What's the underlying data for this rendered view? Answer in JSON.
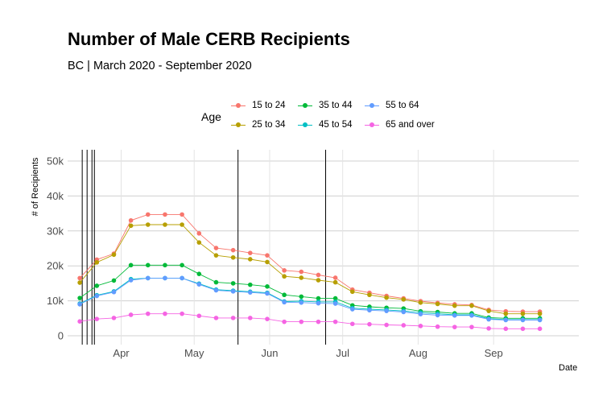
{
  "chart_data": {
    "type": "line",
    "title": "Number of Male CERB Recipients",
    "subtitle": "BC | March 2020 - September 2020",
    "xlabel": "Date",
    "ylabel": "# of Recipients",
    "ylim": [
      0,
      50000
    ],
    "yticks": [
      0,
      10000,
      20000,
      30000,
      40000,
      50000
    ],
    "ytick_labels": [
      "0",
      "10k",
      "20k",
      "30k",
      "40k",
      "50k"
    ],
    "xticks": [
      "2020-04-01",
      "2020-05-01",
      "2020-06-01",
      "2020-07-01",
      "2020-08-01",
      "2020-09-01"
    ],
    "xtick_labels": [
      "Apr",
      "May",
      "Jun",
      "Jul",
      "Aug",
      "Sep"
    ],
    "xlim": [
      "2020-03-10",
      "2020-10-06"
    ],
    "grid": true,
    "legend_title": "Age",
    "legend_position": "top",
    "vlines": [
      "2020-03-16",
      "2020-03-18",
      "2020-03-20",
      "2020-03-21",
      "2020-05-19",
      "2020-06-24"
    ],
    "x": [
      "2020-03-15",
      "2020-03-22",
      "2020-03-29",
      "2020-04-05",
      "2020-04-12",
      "2020-04-19",
      "2020-04-26",
      "2020-05-03",
      "2020-05-10",
      "2020-05-17",
      "2020-05-24",
      "2020-05-31",
      "2020-06-07",
      "2020-06-14",
      "2020-06-21",
      "2020-06-28",
      "2020-07-05",
      "2020-07-12",
      "2020-07-19",
      "2020-07-26",
      "2020-08-02",
      "2020-08-09",
      "2020-08-16",
      "2020-08-23",
      "2020-08-30",
      "2020-09-06",
      "2020-09-13",
      "2020-09-20",
      "2020-09-27"
    ],
    "series": [
      {
        "name": "15 to 24",
        "color": "#F8766D",
        "values": [
          16500,
          21800,
          23500,
          33000,
          34700,
          34700,
          34700,
          29300,
          25100,
          24500,
          23700,
          23000,
          18700,
          18300,
          17400,
          16600,
          13200,
          12300,
          11400,
          10700,
          9900,
          9400,
          9000,
          8800,
          7400,
          7000,
          6900,
          6900,
          null
        ]
      },
      {
        "name": "25 to 34",
        "color": "#B79F00",
        "values": [
          15200,
          21000,
          23200,
          31500,
          31800,
          31800,
          31800,
          26700,
          23000,
          22400,
          21900,
          21100,
          17000,
          16600,
          15900,
          15300,
          12600,
          11700,
          10900,
          10400,
          9500,
          9100,
          8600,
          8600,
          7100,
          6300,
          6300,
          6300,
          null
        ]
      },
      {
        "name": "35 to 44",
        "color": "#00BA38",
        "values": [
          10800,
          14300,
          15800,
          20200,
          20200,
          20200,
          20200,
          17700,
          15300,
          15000,
          14600,
          14100,
          11700,
          11200,
          10700,
          10700,
          8700,
          8300,
          8000,
          7800,
          7000,
          6800,
          6400,
          6400,
          5200,
          5000,
          5000,
          5000,
          null
        ]
      },
      {
        "name": "45 to 54",
        "color": "#00BFC4",
        "values": [
          9200,
          11600,
          12700,
          16200,
          16500,
          16500,
          16500,
          14900,
          13200,
          12900,
          12600,
          12300,
          9800,
          9900,
          9700,
          9700,
          7900,
          7600,
          7400,
          7100,
          6600,
          6300,
          6000,
          6000,
          4900,
          4600,
          4600,
          4600,
          null
        ]
      },
      {
        "name": "55 to 64",
        "color": "#619CFF",
        "values": [
          9000,
          11400,
          12500,
          15900,
          16500,
          16500,
          16500,
          14700,
          13000,
          12700,
          12400,
          12100,
          9600,
          9500,
          9300,
          9200,
          7600,
          7300,
          7100,
          6800,
          6200,
          5900,
          5800,
          5800,
          4700,
          4500,
          4500,
          4500,
          null
        ]
      },
      {
        "name": "65 and over",
        "color": "#F564E3",
        "values": [
          4100,
          4800,
          5100,
          6000,
          6300,
          6300,
          6300,
          5700,
          5100,
          5100,
          5100,
          4800,
          4000,
          4000,
          4000,
          4000,
          3400,
          3300,
          3100,
          3000,
          2800,
          2600,
          2500,
          2500,
          2100,
          2000,
          2000,
          2000,
          null
        ]
      }
    ]
  }
}
